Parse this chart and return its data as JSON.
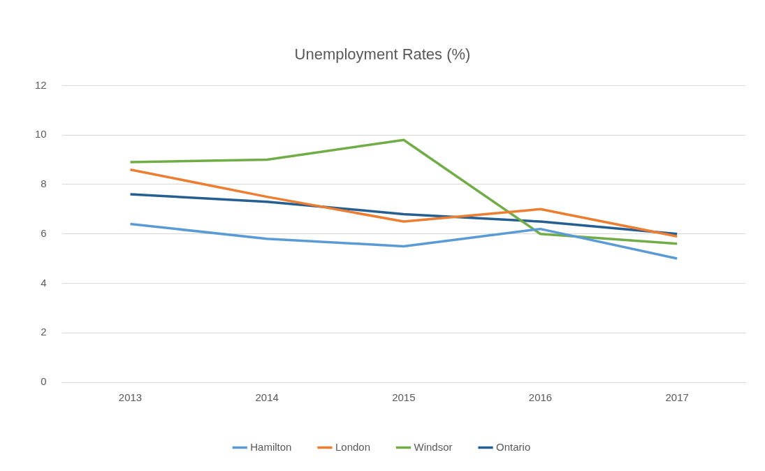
{
  "chart_data": {
    "type": "line",
    "title": "Unemployment Rates (%)",
    "categories": [
      "2013",
      "2014",
      "2015",
      "2016",
      "2017"
    ],
    "series": [
      {
        "name": "Hamilton",
        "color": "#5b9bd5",
        "values": [
          6.4,
          5.8,
          5.5,
          6.2,
          5.0
        ]
      },
      {
        "name": "London",
        "color": "#ed7d31",
        "values": [
          8.6,
          7.5,
          6.5,
          7.0,
          5.9
        ]
      },
      {
        "name": "Windsor",
        "color": "#70ad47",
        "values": [
          8.9,
          9.0,
          9.8,
          6.0,
          5.6
        ]
      },
      {
        "name": "Ontario",
        "color": "#255e91",
        "values": [
          7.6,
          7.3,
          6.8,
          6.5,
          6.0
        ]
      }
    ],
    "ylim": [
      0,
      12
    ],
    "yticks": [
      0,
      2,
      4,
      6,
      8,
      10,
      12
    ],
    "grid": "y",
    "legend": "bottom",
    "line_style": "solid"
  }
}
